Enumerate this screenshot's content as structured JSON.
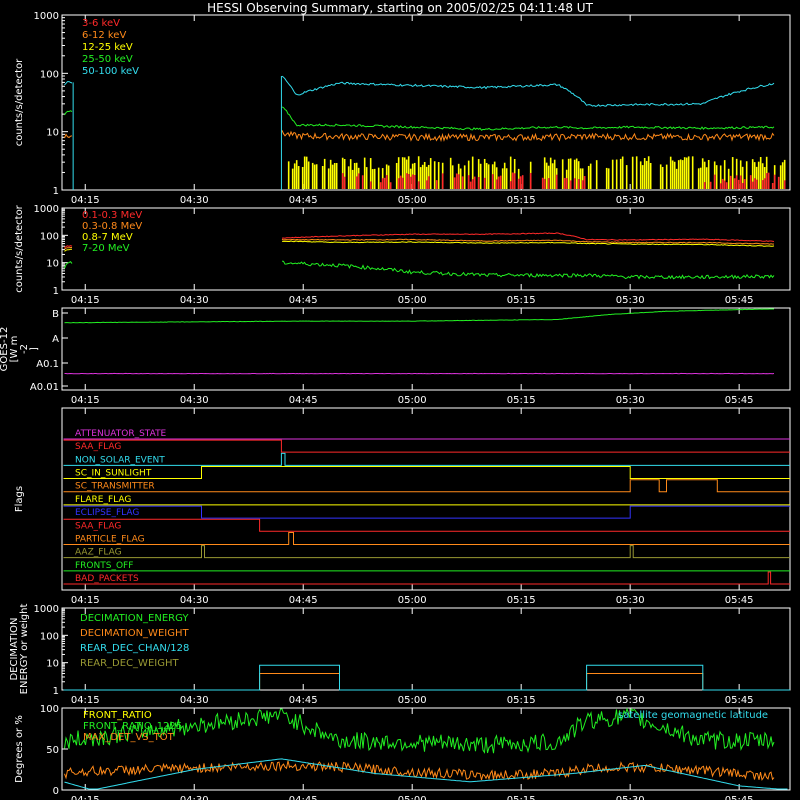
{
  "title": "HESSI Observing Summary, starting on 2005/02/25 04:11:48 UT",
  "time_ticks": [
    "04:15",
    "04:30",
    "04:45",
    "05:00",
    "05:15",
    "05:30",
    "05:45"
  ],
  "colors": {
    "bg": "#000000",
    "axis": "#ffffff",
    "red": "#ff2a2a",
    "orange": "#ff8a1a",
    "yellow": "#ffff00",
    "green": "#22ee22",
    "cyan": "#33ddee",
    "magenta": "#dd33dd",
    "blue": "#3333ff",
    "olive": "#999933"
  },
  "chart_data": [
    {
      "id": "corona",
      "type": "line",
      "ylabel": "counts/s/detector",
      "yscale": "log",
      "ylim": [
        1,
        1000
      ],
      "yticks": [
        "1",
        "10",
        "100",
        "1000"
      ],
      "xlim": [
        "04:11:48",
        "05:52"
      ],
      "series": [
        {
          "name": "3-6 keV",
          "color": "#ff2a2a",
          "x": [
            "04:12",
            "04:12:30",
            "04:42",
            "04:44",
            "04:50",
            "05:00",
            "05:10",
            "05:20",
            "05:24",
            "05:30",
            "05:40",
            "05:50"
          ],
          "y": [
            1.3,
            1.5,
            3,
            1.5,
            1.3,
            1.3,
            1.2,
            1.3,
            1.4,
            1.3,
            1.3,
            1.3
          ]
        },
        {
          "name": "6-12 keV",
          "color": "#ff8a1a",
          "x": [
            "04:12",
            "04:12:30",
            "04:42",
            "04:44",
            "04:50",
            "05:00",
            "05:10",
            "05:20",
            "05:24",
            "05:30",
            "05:40",
            "05:50"
          ],
          "y": [
            8,
            9,
            9.5,
            8.5,
            8.3,
            8.1,
            8,
            8.1,
            8.3,
            8.2,
            8.1,
            8.3
          ]
        },
        {
          "name": "12-25 keV",
          "color": "#ffff00",
          "x": [
            "04:12",
            "04:12:30",
            "04:42",
            "04:44",
            "04:50",
            "05:00",
            "05:10",
            "05:20",
            "05:24",
            "05:30",
            "05:40",
            "05:50"
          ],
          "y": [
            2,
            2.5,
            4,
            3,
            3,
            3,
            2.9,
            3,
            3.1,
            3,
            3.1,
            3.2
          ]
        },
        {
          "name": "25-50 keV",
          "color": "#22ee22",
          "x": [
            "04:12",
            "04:12:30",
            "04:42",
            "04:44",
            "04:50",
            "05:00",
            "05:10",
            "05:20",
            "05:24",
            "05:30",
            "05:40",
            "05:50"
          ],
          "y": [
            18,
            22,
            27,
            13,
            13,
            12,
            11,
            12,
            11.5,
            12,
            11.5,
            12
          ]
        },
        {
          "name": "50-100 keV",
          "color": "#33ddee",
          "x": [
            "04:12",
            "04:12:30",
            "04:42",
            "04:44",
            "04:50",
            "05:00",
            "05:10",
            "05:20",
            "05:24",
            "05:30",
            "05:40",
            "05:50"
          ],
          "y": [
            60,
            70,
            90,
            42,
            68,
            62,
            57,
            64,
            28,
            29,
            30,
            68
          ]
        }
      ]
    },
    {
      "id": "gamma",
      "type": "line",
      "ylabel": "counts/s/detector",
      "yscale": "log",
      "ylim": [
        1,
        1000
      ],
      "yticks": [
        "1",
        "10",
        "100",
        "1000"
      ],
      "xlim": [
        "04:11:48",
        "05:52"
      ],
      "series": [
        {
          "name": "0.1-0.3 MeV",
          "color": "#ff2a2a",
          "x": [
            "04:12",
            "04:12:30",
            "04:42",
            "04:50",
            "05:00",
            "05:10",
            "05:20",
            "05:24",
            "05:30",
            "05:40",
            "05:50"
          ],
          "y": [
            35,
            40,
            80,
            95,
            110,
            110,
            120,
            70,
            68,
            72,
            60
          ]
        },
        {
          "name": "0.3-0.8 MeV",
          "color": "#ff8a1a",
          "x": [
            "04:12",
            "04:12:30",
            "04:42",
            "04:50",
            "05:00",
            "05:10",
            "05:20",
            "05:24",
            "05:30",
            "05:40",
            "05:50"
          ],
          "y": [
            30,
            35,
            70,
            68,
            70,
            62,
            66,
            58,
            55,
            54,
            48
          ]
        },
        {
          "name": "0.8-7 MeV",
          "color": "#ffff00",
          "x": [
            "04:12",
            "04:12:30",
            "04:42",
            "04:50",
            "05:00",
            "05:10",
            "05:20",
            "05:24",
            "05:30",
            "05:40",
            "05:50"
          ],
          "y": [
            25,
            30,
            62,
            55,
            57,
            52,
            54,
            50,
            48,
            46,
            40
          ]
        },
        {
          "name": "7-20 MeV",
          "color": "#22ee22",
          "x": [
            "04:12",
            "04:12:30",
            "04:42",
            "04:50",
            "05:00",
            "05:10",
            "05:20",
            "05:24",
            "05:30",
            "05:40",
            "05:50"
          ],
          "y": [
            5,
            10,
            10,
            8,
            4.5,
            3.5,
            3.5,
            3.5,
            3,
            3,
            3.2
          ]
        }
      ]
    },
    {
      "id": "goes",
      "type": "line",
      "ylabel": "GOES-12 [W m-2]",
      "ylabel_lines": [
        "GOES-12",
        "[W m",
        "-2",
        "]"
      ],
      "yticks": [
        "B",
        "A",
        "A0.1",
        "A0.01"
      ],
      "xlim": [
        "04:11:48",
        "05:52"
      ],
      "series": [
        {
          "name": "GOES long",
          "color": "#22ee22",
          "x": [
            "04:12",
            "04:45",
            "05:00",
            "05:20",
            "05:27",
            "05:35",
            "05:50"
          ],
          "y_level": [
            0.82,
            0.84,
            0.84,
            0.86,
            0.92,
            0.96,
            0.99
          ]
        },
        {
          "name": "GOES short",
          "color": "#dd33dd",
          "x": [
            "04:12",
            "05:50"
          ],
          "y_level": [
            0.2,
            0.2
          ]
        }
      ]
    },
    {
      "id": "flags",
      "type": "line",
      "ylabel": "Flags",
      "xlim": [
        "04:11:48",
        "05:52"
      ],
      "series": [
        {
          "name": "ATTENUATOR_STATE",
          "color": "#dd33dd",
          "segments": [
            [
              "04:12",
              "05:52",
              0
            ]
          ]
        },
        {
          "name": "SAA_FLAG",
          "color": "#ff2a2a",
          "segments": [
            [
              "04:12",
              "04:42",
              1
            ],
            [
              "04:42",
              "05:52",
              0
            ]
          ]
        },
        {
          "name": "NON_SOLAR_EVENT",
          "color": "#33ddee",
          "segments": [
            [
              "04:12",
              "04:42",
              0
            ],
            [
              "04:42",
              "04:42:30",
              1
            ],
            [
              "04:42:30",
              "05:52",
              0
            ]
          ]
        },
        {
          "name": "SC_IN_SUNLIGHT",
          "color": "#ffff00",
          "segments": [
            [
              "04:12",
              "04:31",
              0
            ],
            [
              "04:31",
              "05:30",
              1
            ],
            [
              "05:30",
              "05:52",
              0
            ]
          ]
        },
        {
          "name": "SC_TRANSMITTER",
          "color": "#ff8a1a",
          "segments": [
            [
              "04:12",
              "05:30",
              0
            ],
            [
              "05:30",
              "05:34",
              1
            ],
            [
              "05:34",
              "05:35",
              0
            ],
            [
              "05:35",
              "05:42",
              1
            ],
            [
              "05:42",
              "05:52",
              0
            ]
          ]
        },
        {
          "name": "FLARE_FLAG",
          "color": "#ffff00",
          "segments": [
            [
              "04:12",
              "05:52",
              0
            ]
          ]
        },
        {
          "name": "ECLIPSE_FLAG",
          "color": "#3333ff",
          "segments": [
            [
              "04:12",
              "04:31",
              1
            ],
            [
              "04:31",
              "05:30",
              0
            ],
            [
              "05:30",
              "05:52",
              1
            ]
          ]
        },
        {
          "name": "SAA_FLAG",
          "color": "#ff2a2a",
          "segments": [
            [
              "04:12",
              "04:39",
              1
            ],
            [
              "04:39",
              "05:52",
              0
            ]
          ]
        },
        {
          "name": "PARTICLE_FLAG",
          "color": "#ff8a1a",
          "segments": [
            [
              "04:12",
              "04:43",
              0
            ],
            [
              "04:43",
              "04:43:40",
              1
            ],
            [
              "04:43:40",
              "05:52",
              0
            ]
          ]
        },
        {
          "name": "AAZ_FLAG",
          "color": "#999933",
          "segments": [
            [
              "04:12",
              "04:31",
              0
            ],
            [
              "04:31",
              "04:31:25",
              1
            ],
            [
              "04:31:25",
              "05:30",
              0
            ],
            [
              "05:30",
              "05:30:25",
              1
            ],
            [
              "05:30:25",
              "05:52",
              0
            ]
          ]
        },
        {
          "name": "FRONTS_OFF",
          "color": "#22ee22",
          "segments": [
            [
              "04:12",
              "05:52",
              0
            ]
          ]
        },
        {
          "name": "BAD_PACKETS",
          "color": "#ff2a2a",
          "segments": [
            [
              "04:12",
              "05:49",
              0
            ],
            [
              "05:49",
              "05:49:20",
              1
            ],
            [
              "05:49:20",
              "05:52",
              0
            ]
          ]
        }
      ]
    },
    {
      "id": "decimation",
      "type": "line",
      "ylabel": "DECIMATION ENERGY or weight",
      "ylabel_lines": [
        "DECIMATION",
        "ENERGY or weight"
      ],
      "yscale": "log",
      "ylim": [
        1,
        1000
      ],
      "yticks": [
        "1",
        "10",
        "100",
        "1000"
      ],
      "xlim": [
        "04:11:48",
        "05:52"
      ],
      "series": [
        {
          "name": "DECIMATION_ENERGY",
          "color": "#22ee22",
          "x": [
            "04:12",
            "05:52"
          ],
          "y": [
            0,
            0
          ]
        },
        {
          "name": "DECIMATION_WEIGHT",
          "color": "#ff8a1a",
          "x": [
            "04:12",
            "04:39",
            "04:39",
            "04:50",
            "04:50",
            "05:24",
            "05:24",
            "05:40",
            "05:40",
            "05:52"
          ],
          "y": [
            1,
            1,
            4,
            4,
            1,
            1,
            4,
            4,
            1,
            1
          ]
        },
        {
          "name": "REAR_DEC_CHAN/128",
          "color": "#33ddee",
          "x": [
            "04:12",
            "04:39",
            "04:39",
            "04:50",
            "04:50",
            "05:24",
            "05:24",
            "05:40",
            "05:40",
            "05:52"
          ],
          "y": [
            1,
            1,
            8,
            8,
            1,
            1,
            8,
            8,
            1,
            1
          ]
        },
        {
          "name": "REAR_DEC_WEIGHT",
          "color": "#999933",
          "x": [
            "04:12",
            "04:39",
            "04:39",
            "04:50",
            "04:50",
            "05:24",
            "05:24",
            "05:40",
            "05:40",
            "05:52"
          ],
          "y": [
            1,
            1,
            4,
            4,
            1,
            1,
            4,
            4,
            1,
            1
          ]
        }
      ]
    },
    {
      "id": "ratios",
      "type": "line",
      "ylabel": "Degrees or %",
      "yticks": [
        "0",
        "50",
        "100"
      ],
      "ylim": [
        0,
        100
      ],
      "xlim": [
        "04:11:48",
        "05:52"
      ],
      "series": [
        {
          "name": "FRONT_RATIO",
          "color": "#ffff00",
          "x": [
            "04:12",
            "05:52"
          ],
          "y": [
            0,
            0
          ]
        },
        {
          "name": "FRONT_RATIO_1225",
          "color": "#22ee22",
          "x": [
            "04:12",
            "04:12:30",
            "04:42",
            "04:50",
            "05:00",
            "05:10",
            "05:20",
            "05:24",
            "05:30",
            "05:40",
            "05:50"
          ],
          "y": [
            45,
            60,
            92,
            60,
            58,
            55,
            58,
            85,
            90,
            60,
            60
          ]
        },
        {
          "name": "MAX_DET_VS_TOT",
          "color": "#ff8a1a",
          "x": [
            "04:12",
            "04:12:30",
            "04:42",
            "04:50",
            "05:00",
            "05:10",
            "05:20",
            "05:24",
            "05:30",
            "05:40",
            "05:50"
          ],
          "y": [
            18,
            22,
            30,
            28,
            22,
            18,
            20,
            26,
            28,
            24,
            16
          ]
        },
        {
          "name": "satellite geomagnetic latitude",
          "color": "#33ddee",
          "x": [
            "04:12",
            "04:16",
            "04:30",
            "04:42",
            "04:55",
            "05:08",
            "05:22",
            "05:32",
            "05:45",
            "05:52"
          ],
          "y": [
            10,
            0,
            25,
            38,
            20,
            10,
            20,
            30,
            5,
            0
          ]
        }
      ]
    }
  ]
}
